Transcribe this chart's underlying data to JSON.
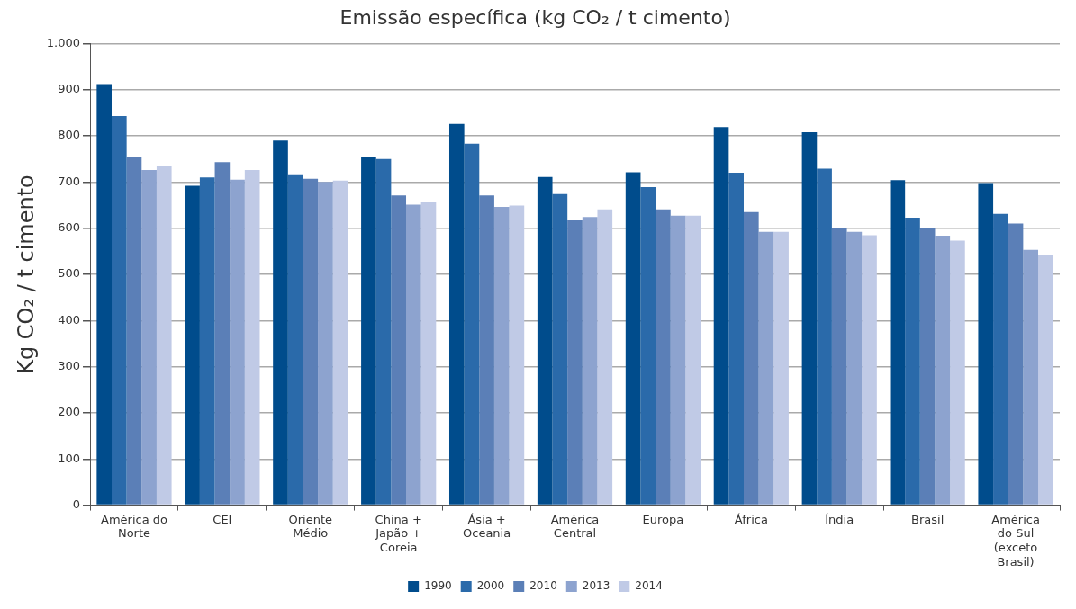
{
  "chart_data": {
    "type": "bar",
    "title": "Emissão específica (kg CO₂ / t cimento)",
    "ylabel": "Kg CO₂ / t cimento",
    "categories": [
      "América do\nNorte",
      "CEI",
      "Oriente\nMédio",
      "China +\nJapão +\nCoreia",
      "Ásia +\nOceania",
      "América\nCentral",
      "Europa",
      "África",
      "Índia",
      "Brasil",
      "América\ndo Sul\n(exceto\nBrasil)"
    ],
    "series": [
      {
        "name": "1990",
        "color": "#004c8c",
        "values": [
          912,
          692,
          790,
          754,
          826,
          711,
          721,
          819,
          808,
          704,
          698
        ]
      },
      {
        "name": "2000",
        "color": "#2a6aaa",
        "values": [
          843,
          710,
          717,
          750,
          783,
          674,
          689,
          720,
          729,
          623,
          631
        ]
      },
      {
        "name": "2010",
        "color": "#5b7fb7",
        "values": [
          754,
          743,
          707,
          671,
          671,
          617,
          641,
          635,
          601,
          600,
          610
        ]
      },
      {
        "name": "2013",
        "color": "#8da3cf",
        "values": [
          726,
          705,
          700,
          651,
          646,
          624,
          627,
          592,
          592,
          584,
          553
        ]
      },
      {
        "name": "2014",
        "color": "#c0cae6",
        "values": [
          736,
          726,
          703,
          656,
          649,
          641,
          627,
          592,
          585,
          573,
          541
        ]
      }
    ],
    "ylim": [
      0,
      1000
    ],
    "yticks": [
      0,
      100,
      200,
      300,
      400,
      500,
      600,
      700,
      800,
      900,
      {
        "value": 1000,
        "label": "1.000"
      }
    ],
    "grid": "y",
    "legend": "bottom"
  }
}
